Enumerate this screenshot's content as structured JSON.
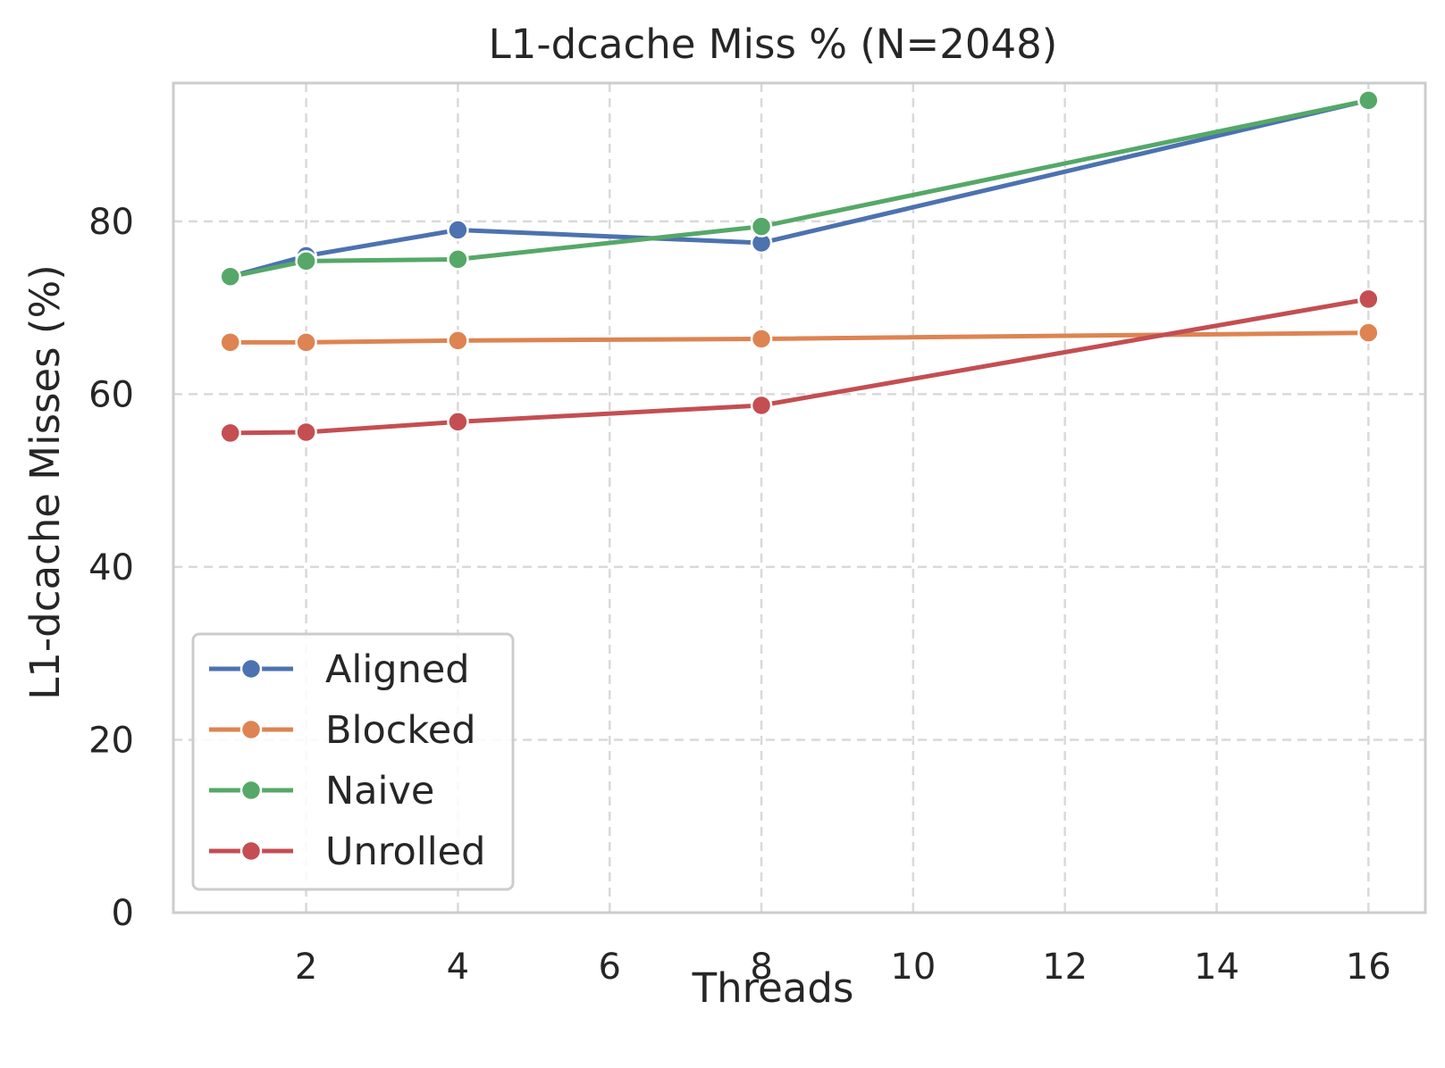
{
  "chart_data": {
    "type": "line",
    "title": "L1-dcache Miss % (N=2048)",
    "xlabel": "Threads",
    "ylabel": "L1-dcache Misses (%)",
    "x": [
      1,
      2,
      4,
      8,
      16
    ],
    "xlim": [
      0.25,
      16.75
    ],
    "ylim": [
      0,
      96
    ],
    "xticks": [
      2,
      4,
      6,
      8,
      10,
      12,
      14,
      16
    ],
    "yticks": [
      0,
      20,
      40,
      60,
      80
    ],
    "grid": true,
    "legend_position": "lower-left",
    "series": [
      {
        "name": "Aligned",
        "color": "#4c72b0",
        "values": [
          73.6,
          76.0,
          79.0,
          77.5,
          94.0
        ]
      },
      {
        "name": "Blocked",
        "color": "#dd8452",
        "values": [
          66.0,
          66.0,
          66.2,
          66.4,
          67.1
        ]
      },
      {
        "name": "Naive",
        "color": "#55a868",
        "values": [
          73.6,
          75.4,
          75.6,
          79.4,
          94.0
        ]
      },
      {
        "name": "Unrolled",
        "color": "#c44e52",
        "values": [
          55.5,
          55.6,
          56.8,
          58.7,
          71.0
        ]
      }
    ]
  }
}
